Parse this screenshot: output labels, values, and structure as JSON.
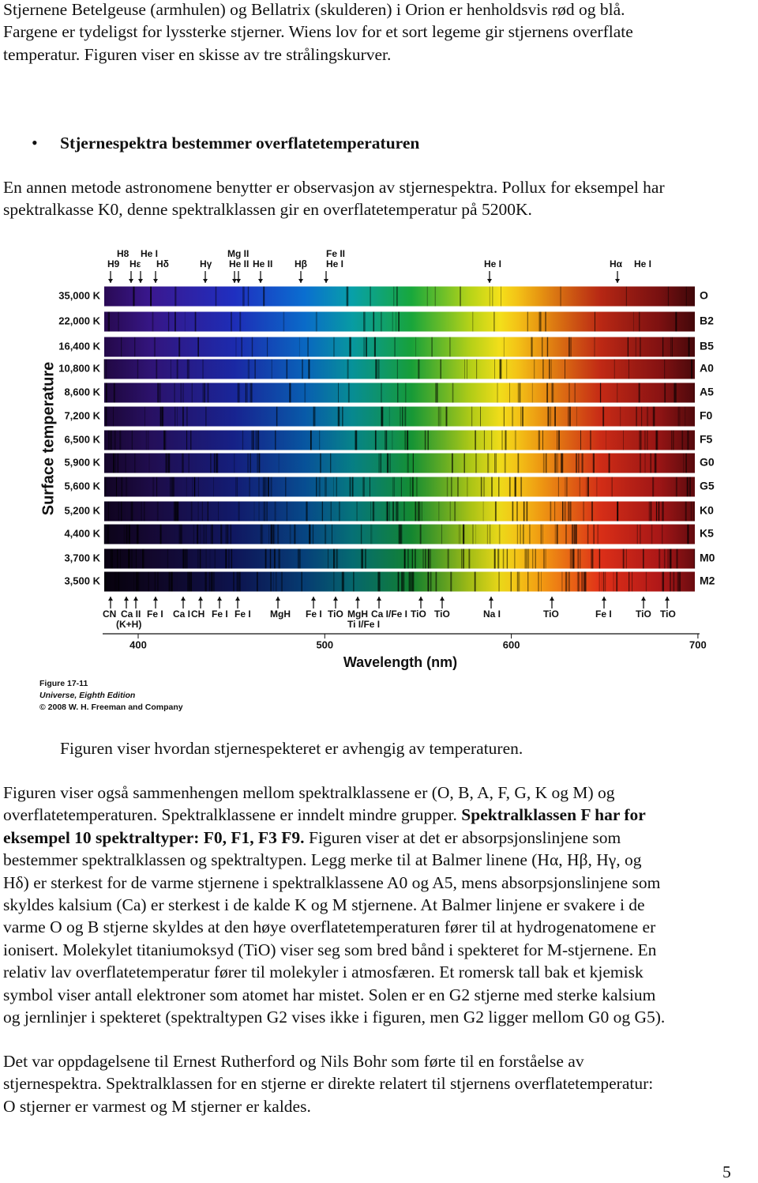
{
  "intro": {
    "lines": [
      "Stjernene Betelgeuse (armhulen) og Bellatrix (skulderen) i Orion er henholdsvis rød og blå.",
      "Fargene er tydeligst for lyssterke stjerner. Wiens lov for et sort legeme gir stjernens overflate",
      "temperatur. Figuren viser en skisse av tre strålingskurver."
    ]
  },
  "bullet_heading": "Stjernespektra bestemmer overflatetemperaturen",
  "method": {
    "lines": [
      "En annen metode astronomene benytter er observasjon av stjernespektra. Pollux for eksempel har",
      "spektralkasse K0, denne spektralklassen gir en overflatetemperatur på 5200K."
    ]
  },
  "figure": {
    "top_labels": [
      "H8",
      "He I",
      "Mg II",
      "Fe II",
      "H9",
      "Hε",
      "Hδ",
      "Hγ",
      "He II",
      "He II",
      "Hβ",
      "He I",
      "He I",
      "Hα",
      "He I"
    ],
    "temperatures": [
      "35,000 K",
      "22,000 K",
      "16,400 K",
      "10,800 K",
      "8,600 K",
      "7,200 K",
      "6,500 K",
      "5,900 K",
      "5,600 K",
      "5,200 K",
      "4,400 K",
      "3,700 K",
      "3,500 K"
    ],
    "classes": [
      "O",
      "B2",
      "B5",
      "A0",
      "A5",
      "F0",
      "F5",
      "G0",
      "G5",
      "K0",
      "K5",
      "M0",
      "M2"
    ],
    "bottom_labels": [
      "CN",
      "Ca II",
      "Fe I",
      "Ca I",
      "CH",
      "Fe I",
      "Fe I",
      "MgH",
      "Fe I",
      "TiO",
      "MgH",
      "Ca I/Fe I",
      "TiO",
      "TiO",
      "Na I",
      "TiO",
      "Fe I",
      "TiO",
      "TiO",
      "(K+H)",
      "Ti I/Fe I"
    ],
    "axis_ticks": [
      400,
      500,
      600,
      700
    ],
    "axis_title": "Wavelength (nm)",
    "y_axis_title": "Surface temperature",
    "credit": [
      "Figure 17-11",
      "Universe, Eighth Edition",
      "© 2008 W. H. Freeman and Company"
    ]
  },
  "caption": "Figuren viser hvordan stjernespekteret er avhengig av temperaturen.",
  "classes_paragraph": {
    "lines": [
      [
        {
          "text": "Figuren viser også sammenhengen mellom spektralklassene er (O, B, A, F, G, K og M) og",
          "bold": false
        }
      ],
      [
        {
          "text": "overflatetemperaturen. Spektralklassene er inndelt mindre grupper. ",
          "bold": false
        },
        {
          "text": "Spektralklassen F har for",
          "bold": true
        }
      ],
      [
        {
          "text": "eksempel 10 spektraltyper: F0, F1, F3 F9.",
          "bold": true
        },
        {
          "text": " Figuren viser at det er absorpsjonslinjene som",
          "bold": false
        }
      ],
      [
        {
          "text": "bestemmer spektralklassen og spektraltypen. Legg merke til at Balmer linene (Hα, Hβ, Hγ, og",
          "bold": false
        }
      ],
      [
        {
          "text": "Hδ) er sterkest for de varme stjernene i spektralklassene A0 og A5, mens absorpsjonslinjene som",
          "bold": false
        }
      ],
      [
        {
          "text": "skyldes kalsium (Ca) er sterkest i de kalde K og M stjernene.  At Balmer linjene er svakere i de",
          "bold": false
        }
      ],
      [
        {
          "text": "varme O og B stjerne skyldes at den høye overflatetemperaturen fører til at hydrogenatomene er",
          "bold": false
        }
      ],
      [
        {
          "text": "ionisert. Molekylet titaniumoksyd (TiO) viser seg som bred bånd i spekteret for M-stjernene. En",
          "bold": false
        }
      ],
      [
        {
          "text": "relativ lav overflatetemperatur fører til molekyler i atmosfæren. Et romersk tall bak et kjemisk",
          "bold": false
        }
      ],
      [
        {
          "text": "symbol viser antall elektroner som atomet har mistet. Solen er en G2 stjerne med sterke kalsium",
          "bold": false
        }
      ],
      [
        {
          "text": "og jernlinjer i spekteret (spektraltypen G2 vises ikke i figuren, men G2 ligger mellom G0 og G5).",
          "bold": false
        }
      ]
    ]
  },
  "closing": {
    "lines": [
      "Det var oppdagelsene til Ernest Rutherford og Nils Bohr som førte til en forståelse av",
      "stjernespektra. Spektralklassen for en stjerne er direkte relatert til stjernens overflatetemperatur:",
      "O stjerner er varmest og M stjerner er kaldes."
    ]
  },
  "page_number": "5"
}
